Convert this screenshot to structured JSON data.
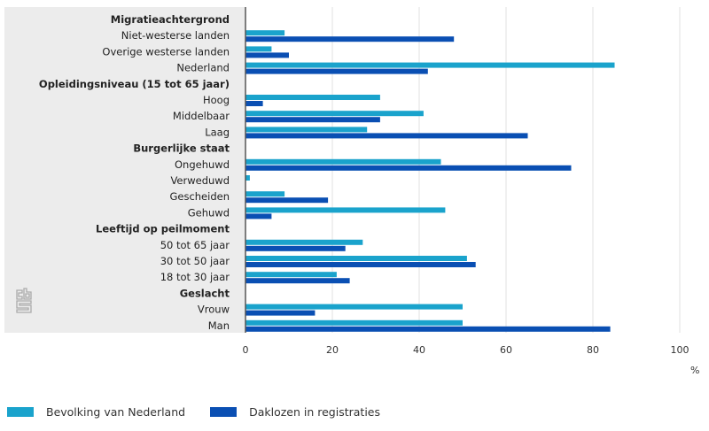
{
  "chart_data": {
    "type": "bar",
    "orientation": "horizontal",
    "rows": [
      {
        "label": "Migratieachtergrond",
        "header": true
      },
      {
        "label": "Niet-westerse landen",
        "values": [
          9,
          48
        ]
      },
      {
        "label": "Overige westerse landen",
        "values": [
          6,
          10
        ]
      },
      {
        "label": "Nederland",
        "values": [
          85,
          42
        ]
      },
      {
        "label": "Opleidingsniveau (15 tot 65 jaar)",
        "header": true
      },
      {
        "label": "Hoog",
        "values": [
          31,
          4
        ]
      },
      {
        "label": "Middelbaar",
        "values": [
          41,
          31
        ]
      },
      {
        "label": "Laag",
        "values": [
          28,
          65
        ]
      },
      {
        "label": "Burgerlijke staat",
        "header": true
      },
      {
        "label": "Ongehuwd",
        "values": [
          45,
          75
        ]
      },
      {
        "label": "Verweduwd",
        "values": [
          1,
          0
        ]
      },
      {
        "label": "Gescheiden",
        "values": [
          9,
          19
        ]
      },
      {
        "label": "Gehuwd",
        "values": [
          46,
          6
        ]
      },
      {
        "label": "Leeftijd op peilmoment",
        "header": true
      },
      {
        "label": "50 tot 65 jaar",
        "values": [
          27,
          23
        ]
      },
      {
        "label": "30 tot 50 jaar",
        "values": [
          51,
          53
        ]
      },
      {
        "label": "18 tot 30 jaar",
        "values": [
          21,
          24
        ]
      },
      {
        "label": "Geslacht",
        "header": true
      },
      {
        "label": "Vrouw",
        "values": [
          50,
          16
        ]
      },
      {
        "label": "Man",
        "values": [
          50,
          84
        ]
      }
    ],
    "series": [
      {
        "name": "Bevolking van Nederland",
        "color": "#1aa3cc"
      },
      {
        "name": "Daklozen in registraties",
        "color": "#0a4fb3"
      }
    ],
    "xlim": [
      0,
      100
    ],
    "xticks": [
      "0",
      "20",
      "40",
      "60",
      "80",
      "100"
    ],
    "xlabel": "%",
    "grid": true,
    "legend": "bottom-left"
  },
  "logo": "cbs"
}
